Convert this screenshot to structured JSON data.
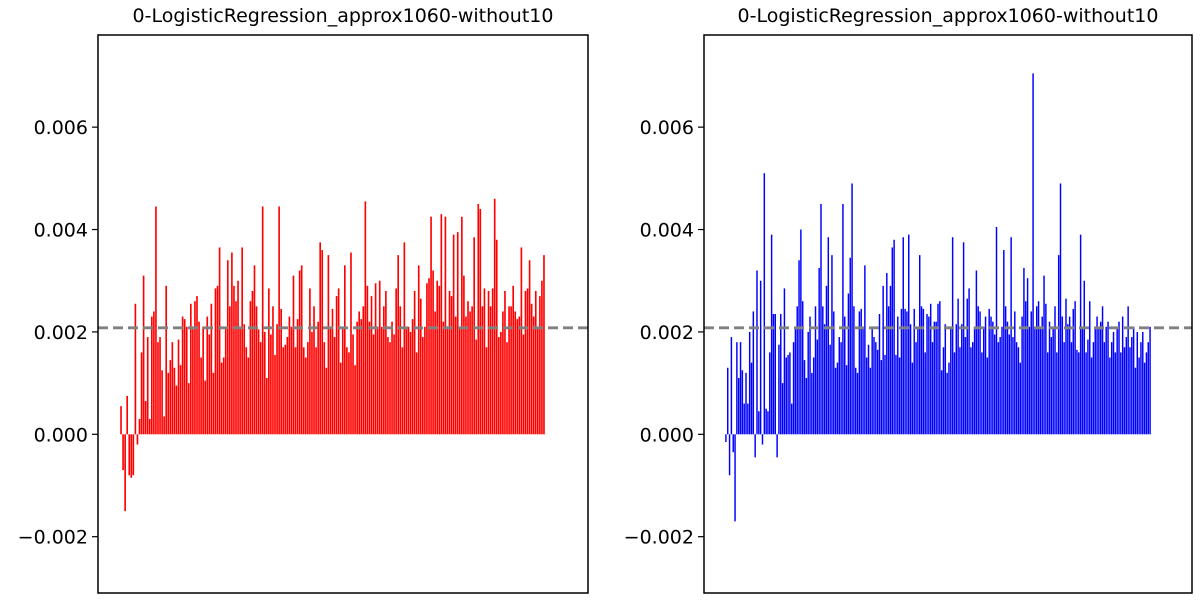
{
  "chart_data": [
    {
      "type": "bar",
      "title": "0-LogisticRegression_approx1060-without10",
      "color": "#ff0000",
      "ylim": [
        -0.0031,
        0.0078
      ],
      "yticks": [
        -0.002,
        0.0,
        0.002,
        0.004,
        0.006
      ],
      "ytick_labels": [
        "−0.002",
        "0.000",
        "0.002",
        "0.004",
        "0.006"
      ],
      "xticks_visible": false,
      "grid": false,
      "reference_line": {
        "value": 0.00208,
        "style": "dashed",
        "color": "#808080"
      },
      "values": [
        0.00055,
        -0.0007,
        -0.0015,
        0.00075,
        -0.0008,
        -0.00085,
        -0.0008,
        0.00255,
        -0.0002,
        0.0003,
        0.0016,
        0.0031,
        0.00065,
        0.0019,
        0.0003,
        0.0023,
        0.0024,
        0.00445,
        0.0018,
        0.0019,
        0.00125,
        0.00035,
        0.0029,
        0.0012,
        0.00145,
        0.0018,
        0.0013,
        0.00095,
        0.00185,
        0.00135,
        0.0023,
        0.00225,
        0.0021,
        0.001,
        0.00255,
        0.00205,
        0.0026,
        0.0027,
        0.0022,
        0.0015,
        0.0021,
        0.00105,
        0.0023,
        0.00195,
        0.00255,
        0.0012,
        0.00285,
        0.0029,
        0.00365,
        0.0014,
        0.0015,
        0.0021,
        0.0034,
        0.0025,
        0.00355,
        0.0029,
        0.0026,
        0.003,
        0.0021,
        0.00365,
        0.00215,
        0.0017,
        0.0015,
        0.0026,
        0.0028,
        0.0033,
        0.0025,
        0.00205,
        0.0018,
        0.00445,
        0.002,
        0.0011,
        0.00285,
        0.00195,
        0.0025,
        0.00155,
        0.00215,
        0.00445,
        0.00245,
        0.0017,
        0.00175,
        0.0019,
        0.0023,
        0.0021,
        0.0031,
        0.0017,
        0.00225,
        0.0032,
        0.0033,
        0.0017,
        0.0015,
        0.0018,
        0.00285,
        0.002,
        0.0025,
        0.0017,
        0.0022,
        0.00375,
        0.0036,
        0.0018,
        0.0013,
        0.0035,
        0.0021,
        0.00245,
        0.0019,
        0.0027,
        0.00285,
        0.0014,
        0.0021,
        0.0033,
        0.0017,
        0.0016,
        0.00355,
        0.00195,
        0.00135,
        0.0022,
        0.0024,
        0.00225,
        0.0025,
        0.00455,
        0.0029,
        0.0022,
        0.0027,
        0.00195,
        0.00295,
        0.0021,
        0.003,
        0.0021,
        0.0025,
        0.0028,
        0.0019,
        0.0018,
        0.0022,
        0.00195,
        0.00285,
        0.0035,
        0.0025,
        0.0017,
        0.00375,
        0.0021,
        0.0021,
        0.002,
        0.00225,
        0.0028,
        0.0016,
        0.0033,
        0.00265,
        0.0019,
        0.0021,
        0.00295,
        0.00305,
        0.00425,
        0.0032,
        0.0024,
        0.003,
        0.0029,
        0.0043,
        0.0022,
        0.00425,
        0.0021,
        0.0028,
        0.0027,
        0.0039,
        0.0023,
        0.00395,
        0.0021,
        0.00425,
        0.0031,
        0.0023,
        0.0026,
        0.0024,
        0.0025,
        0.00385,
        0.00185,
        0.0045,
        0.0044,
        0.0025,
        0.00285,
        0.0017,
        0.0028,
        0.0025,
        0.00285,
        0.0046,
        0.0038,
        0.0019,
        0.002,
        0.0024,
        0.0028,
        0.0018,
        0.0025,
        0.0025,
        0.0029,
        0.0024,
        0.00225,
        0.0023,
        0.00365,
        0.00195,
        0.0028,
        0.00285,
        0.0034,
        0.00255,
        0.0023,
        0.0028,
        0.0021,
        0.0027,
        0.003,
        0.0035
      ],
      "x_tick_labels": []
    },
    {
      "type": "bar",
      "title": "0-LogisticRegression_approx1060-without10",
      "color": "#0000ff",
      "ylim": [
        -0.0031,
        0.0078
      ],
      "yticks": [
        -0.002,
        0.0,
        0.002,
        0.004,
        0.006
      ],
      "ytick_labels": [
        "−0.002",
        "0.000",
        "0.002",
        "0.004",
        "0.006"
      ],
      "xticks_visible": false,
      "grid": false,
      "reference_line": {
        "value": 0.00208,
        "style": "dashed",
        "color": "#808080"
      },
      "values": [
        -0.00015,
        0.0013,
        -0.0008,
        0.0019,
        -0.00035,
        -0.0017,
        0.0018,
        0.0011,
        0.0018,
        0.00125,
        0.0006,
        0.0012,
        0.0006,
        0.002,
        0.0014,
        0.0024,
        -0.00045,
        0.0032,
        0.00045,
        0.003,
        -0.0002,
        0.0051,
        0.0005,
        0.00045,
        0.0016,
        0.0039,
        0.00235,
        0.00235,
        -0.00045,
        0.00175,
        0.00235,
        0.001,
        0.00285,
        0.0015,
        0.00155,
        0.0016,
        0.0006,
        0.0018,
        0.0021,
        0.0025,
        0.0034,
        0.004,
        0.0026,
        0.00145,
        0.0011,
        0.002,
        0.0023,
        0.0012,
        0.0015,
        0.0025,
        0.00185,
        0.00325,
        0.0045,
        0.0025,
        0.00215,
        0.0029,
        0.00385,
        0.00175,
        0.0035,
        0.0024,
        0.0013,
        0.0014,
        0.0019,
        0.0018,
        0.0045,
        0.0023,
        0.00135,
        0.00275,
        0.00345,
        0.0049,
        0.0025,
        0.0013,
        0.0012,
        0.0024,
        0.00245,
        0.0021,
        0.0033,
        0.0015,
        0.00175,
        0.0013,
        0.0021,
        0.0019,
        0.0018,
        0.00165,
        0.00235,
        0.00145,
        0.0029,
        0.00155,
        0.00315,
        0.0025,
        0.0029,
        0.00365,
        0.0038,
        0.00155,
        0.0023,
        0.0015,
        0.00245,
        0.00385,
        0.00245,
        0.0024,
        0.0039,
        0.00215,
        0.0014,
        0.00245,
        0.0018,
        0.0021,
        0.0035,
        0.0025,
        0.00245,
        0.0016,
        0.00235,
        0.0023,
        0.00255,
        0.0018,
        0.0022,
        0.0022,
        0.00255,
        0.0026,
        0.00125,
        0.0017,
        0.00215,
        0.0012,
        0.0014,
        0.0021,
        0.00385,
        0.0016,
        0.00215,
        0.00265,
        0.0017,
        0.00215,
        0.00375,
        0.0019,
        0.00265,
        0.00285,
        0.0017,
        0.0018,
        0.0021,
        0.0032,
        0.0025,
        0.0024,
        0.0016,
        0.0021,
        0.0023,
        0.0015,
        0.00245,
        0.0023,
        0.0022,
        0.00195,
        0.00405,
        0.0018,
        0.0019,
        0.0021,
        0.0036,
        0.0025,
        0.0022,
        0.00195,
        0.00385,
        0.0019,
        0.0024,
        0.0018,
        0.0017,
        0.0014,
        0.0023,
        0.00325,
        0.0026,
        0.00305,
        0.0021,
        0.0024,
        0.00705,
        0.0021,
        0.0025,
        0.0026,
        0.0021,
        0.0023,
        0.0031,
        0.00255,
        0.0016,
        0.0022,
        0.0019,
        0.0021,
        0.0025,
        0.0016,
        0.0035,
        0.0049,
        0.0023,
        0.0018,
        0.00265,
        0.00215,
        0.0023,
        0.0018,
        0.00245,
        0.0026,
        0.00165,
        0.0016,
        0.0039,
        0.0021,
        0.003,
        0.0016,
        0.00185,
        0.0026,
        0.0015,
        0.0018,
        0.0021,
        0.0023,
        0.0021,
        0.0022,
        0.0025,
        0.0018,
        0.0021,
        0.0022,
        0.0015,
        0.0018,
        0.002,
        0.0016,
        0.0021,
        0.0022,
        0.0016,
        0.0023,
        0.0017,
        0.0019,
        0.0025,
        0.0017,
        0.0019,
        0.0021,
        0.0013,
        0.002,
        0.0015,
        0.0018,
        0.002,
        0.0014,
        0.0016,
        0.0018,
        0.0021
      ],
      "x_tick_labels": []
    }
  ]
}
